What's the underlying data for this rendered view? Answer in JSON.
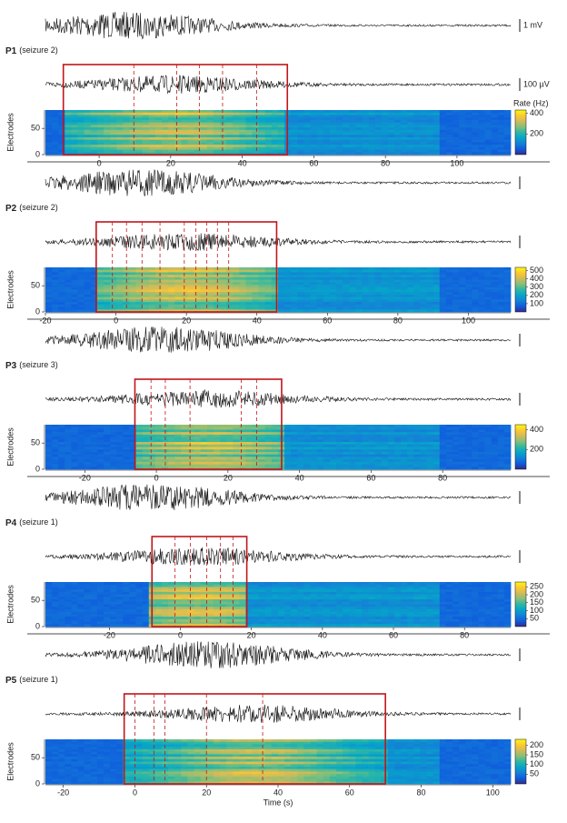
{
  "chart_data": [
    {
      "type": "heatmap",
      "label": "P1",
      "subtitle": "(seizure 2)",
      "ylabel": "Electrodes",
      "scale_labels": [
        "1 mV",
        "100 µV"
      ],
      "xlim": [
        -15,
        115
      ],
      "xticks": [
        0,
        20,
        40,
        60,
        80,
        100
      ],
      "ylim": [
        0,
        85
      ],
      "yticks": [
        0,
        50
      ],
      "highlight": [
        -10,
        52.6
      ],
      "markers": [
        9.7,
        21.7,
        28,
        34.5,
        44
      ],
      "colorbar": {
        "label": "Rate (Hz)",
        "lim": [
          0,
          430
        ],
        "ticks": [
          200,
          400
        ]
      }
    },
    {
      "type": "heatmap",
      "label": "P2",
      "subtitle": "(seizure 2)",
      "ylabel": "Electrodes",
      "xlim": [
        -20,
        112
      ],
      "xticks": [
        -20,
        0,
        20,
        40,
        60,
        80,
        100
      ],
      "ylim": [
        0,
        85
      ],
      "yticks": [
        0,
        50
      ],
      "highlight": [
        -5.6,
        45.6
      ],
      "markers": [
        -1,
        3,
        7.4,
        12.5,
        19.4,
        22.7,
        25.8,
        28.8,
        32
      ],
      "colorbar": {
        "lim": [
          0,
          540
        ],
        "ticks": [
          100,
          200,
          300,
          400,
          500
        ]
      }
    },
    {
      "type": "heatmap",
      "label": "P3",
      "subtitle": "(seizure 3)",
      "ylabel": "Electrodes",
      "xlim": [
        -31,
        99
      ],
      "xticks": [
        -20,
        0,
        20,
        40,
        60,
        80
      ],
      "ylim": [
        0,
        85
      ],
      "yticks": [
        0,
        50
      ],
      "highlight": [
        -6,
        35
      ],
      "markers": [
        -1.5,
        2.5,
        9.4,
        23.7,
        28
      ],
      "colorbar": {
        "lim": [
          0,
          450
        ],
        "ticks": [
          200,
          400
        ]
      }
    },
    {
      "type": "heatmap",
      "label": "P4",
      "subtitle": "(seizure 1)",
      "ylabel": "Electrodes",
      "xlim": [
        -38,
        93
      ],
      "xticks": [
        -20,
        0,
        20,
        40,
        60,
        80
      ],
      "ylim": [
        0,
        85
      ],
      "yticks": [
        0,
        50
      ],
      "highlight": [
        -8,
        18.7
      ],
      "markers": [
        -1.5,
        2.8,
        7.4,
        11.3,
        14.8
      ],
      "colorbar": {
        "lim": [
          0,
          280
        ],
        "ticks": [
          50,
          100,
          150,
          200,
          250
        ]
      }
    },
    {
      "type": "heatmap",
      "label": "P5",
      "subtitle": "(seizure 1)",
      "ylabel": "Electrodes",
      "xlabel": "Time (s)",
      "xlim": [
        -25,
        105
      ],
      "xticks": [
        -20,
        0,
        20,
        40,
        60,
        80,
        100
      ],
      "ylim": [
        0,
        85
      ],
      "yticks": [
        0,
        50
      ],
      "highlight": [
        -3,
        70
      ],
      "markers": [
        0,
        5.3,
        8.4,
        20,
        35.7
      ],
      "colorbar": {
        "lim": [
          0,
          230
        ],
        "ticks": [
          50,
          100,
          150,
          200
        ]
      }
    }
  ]
}
